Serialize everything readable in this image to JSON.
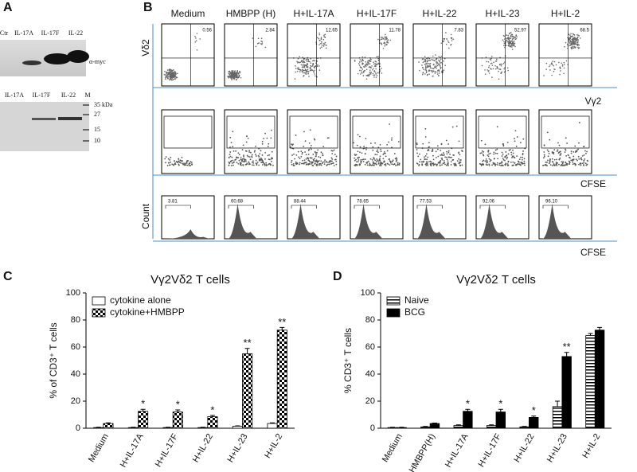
{
  "panel_labels": [
    "A",
    "B",
    "C",
    "D"
  ],
  "panel_a": {
    "top_lanes": [
      "Ctr",
      "IL-17A",
      "IL-17F",
      "IL-22"
    ],
    "antibody": "α-myc",
    "bottom_lanes": [
      "IL-17A",
      "IL-17F",
      "IL-22",
      "M"
    ],
    "markers": [
      "35 kDa",
      "27",
      "15",
      "10"
    ]
  },
  "panel_b": {
    "columns": [
      "Medium",
      "HMBPP (H)",
      "H+IL-17A",
      "H+IL-17F",
      "H+IL-22",
      "H+IL-23",
      "H+IL-2"
    ],
    "y_label_top": "Vδ2",
    "x_label_top": "Vγ2",
    "x_label_middle": "CFSE",
    "y_label_bottom": "Count",
    "x_label_bottom": "CFSE",
    "top_percentages": [
      "0.56",
      "2.84",
      "12.65",
      "11.78",
      "7.83",
      "52.97",
      "68.5"
    ],
    "bottom_percentages": [
      "3.81",
      "60.68",
      "88.44",
      "78.65",
      "77.53",
      "92.06",
      "96.10"
    ]
  },
  "chart_data": [
    {
      "type": "bar",
      "title": "Vγ2Vδ2 T cells",
      "ylabel": "% of CD3⁺ T cells",
      "categories": [
        "Medium",
        "H+IL-17A",
        "H+IL-17F",
        "H+IL-22",
        "H+IL-23",
        "H+IL-2"
      ],
      "series": [
        {
          "name": "cytokine alone",
          "color": "#ffffff",
          "pattern": null,
          "values": [
            0.5,
            0.5,
            0.5,
            0.5,
            1.5,
            3.5
          ],
          "errors": [
            0.2,
            0.2,
            0.2,
            0.2,
            0.3,
            0.5
          ],
          "significance": [
            null,
            null,
            null,
            null,
            null,
            null
          ]
        },
        {
          "name": "cytokine+HMBPP",
          "color": "#000000",
          "pattern": "checker",
          "values": [
            3.5,
            12.5,
            12,
            8.5,
            55,
            72.5
          ],
          "errors": [
            0.5,
            1.5,
            1.5,
            1,
            4,
            2
          ],
          "significance": [
            null,
            "*",
            "*",
            "*",
            "**",
            "**"
          ]
        }
      ],
      "ylim": [
        0,
        100
      ],
      "yticks": [
        0,
        20,
        40,
        60,
        80,
        100
      ],
      "legend": "upper left",
      "grid": false
    },
    {
      "type": "bar",
      "title": "Vγ2Vδ2 T cells",
      "ylabel": "% CD3⁺ T cells",
      "categories": [
        "Medium",
        "HMBPP(H)",
        "H+IL-17A",
        "H+IL-17F",
        "H+IL-22",
        "H+IL-23",
        "H+IL-2"
      ],
      "series": [
        {
          "name": "Naive",
          "color": "#ffffff",
          "pattern": "hstripes",
          "values": [
            0.5,
            1,
            2,
            2,
            1,
            16,
            68.5
          ],
          "errors": [
            0.2,
            0.3,
            0.5,
            0.5,
            0.3,
            4,
            1.5
          ],
          "significance": [
            null,
            null,
            null,
            null,
            null,
            null,
            null
          ]
        },
        {
          "name": "BCG",
          "color": "#000000",
          "pattern": null,
          "values": [
            0.5,
            3.5,
            12.5,
            12,
            8,
            53,
            72.5
          ],
          "errors": [
            0.2,
            0.3,
            1.5,
            2,
            1,
            3,
            2
          ],
          "significance": [
            null,
            null,
            "*",
            "*",
            "*",
            "**",
            null
          ]
        }
      ],
      "ylim": [
        0,
        100
      ],
      "yticks": [
        0,
        20,
        40,
        60,
        80,
        100
      ],
      "legend": "upper left",
      "grid": false
    }
  ]
}
